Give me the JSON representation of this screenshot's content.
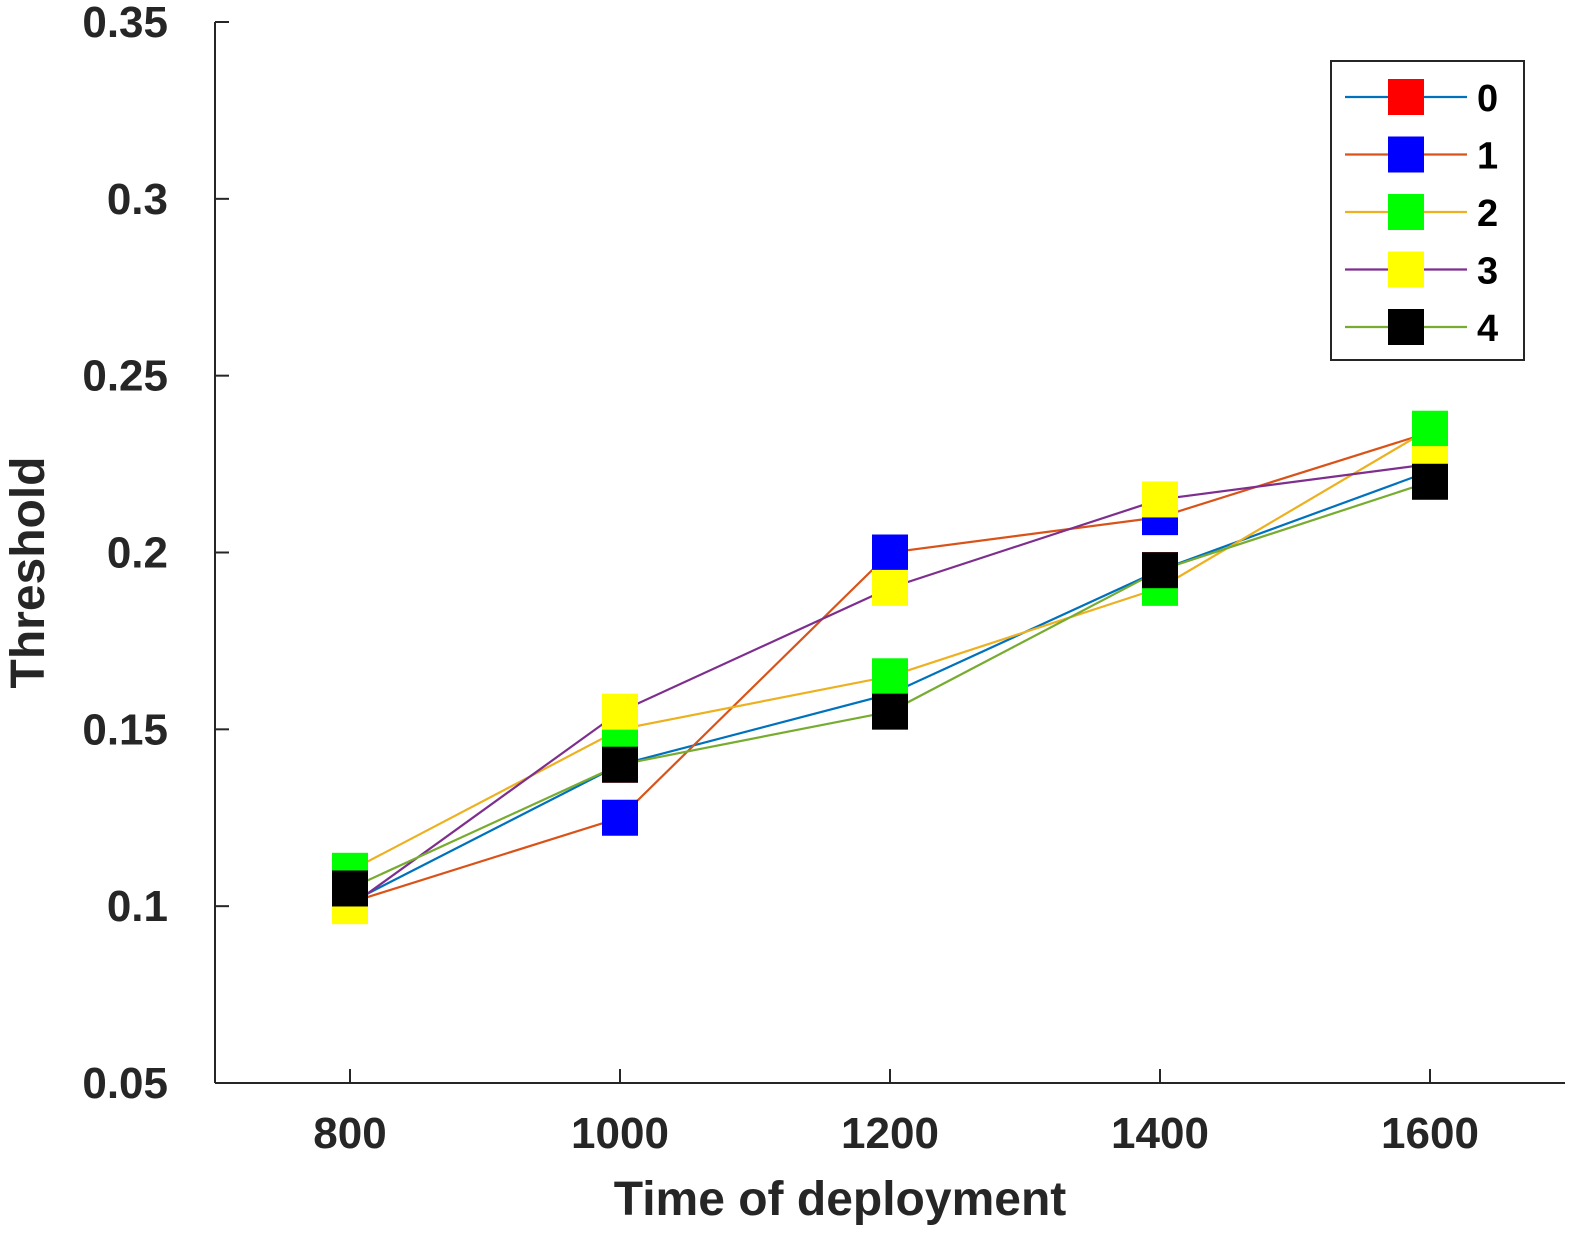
{
  "chart_data": {
    "type": "line",
    "xlabel": "Time of deployment",
    "ylabel": "Threshold",
    "x": [
      800,
      1000,
      1200,
      1400,
      1600
    ],
    "xlim": [
      700,
      1700
    ],
    "ylim": [
      0.05,
      0.35
    ],
    "xticks": [
      "800",
      "1000",
      "1200",
      "1400",
      "1600"
    ],
    "yticks": [
      "0.05",
      "0.1",
      "0.15",
      "0.2",
      "0.25",
      "0.3",
      "0.35"
    ],
    "grid": false,
    "legend_position": "top-right",
    "series": [
      {
        "name": "0",
        "values": [
          0.101,
          0.14,
          0.16,
          0.195,
          0.223
        ],
        "line_color": "#0072bd",
        "marker_color": "#ff0000"
      },
      {
        "name": "1",
        "values": [
          0.101,
          0.125,
          0.2,
          0.21,
          0.234
        ],
        "line_color": "#d95319",
        "marker_color": "#0000ff"
      },
      {
        "name": "2",
        "values": [
          0.11,
          0.15,
          0.165,
          0.19,
          0.235
        ],
        "line_color": "#edb120",
        "marker_color": "#00ff00"
      },
      {
        "name": "3",
        "values": [
          0.1,
          0.155,
          0.19,
          0.215,
          0.225
        ],
        "line_color": "#7e2f8e",
        "marker_color": "#ffff00"
      },
      {
        "name": "4",
        "values": [
          0.105,
          0.14,
          0.155,
          0.195,
          0.22
        ],
        "line_color": "#77ac30",
        "marker_color": "#000000"
      }
    ]
  }
}
